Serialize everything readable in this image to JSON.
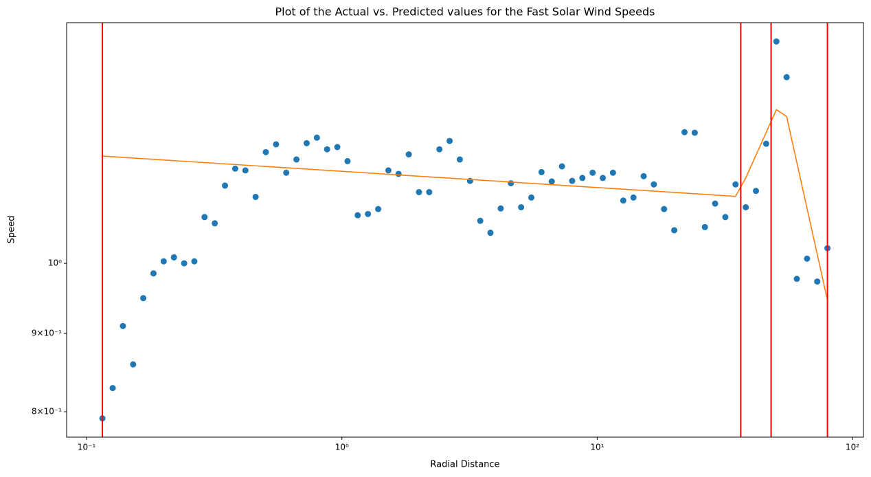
{
  "chart_data": {
    "type": "scatter",
    "title": "Plot of the Actual vs. Predicted values for the Fast Solar Wind Speeds",
    "x_label": "Radial Distance",
    "y_label": "Speed",
    "xscale": "log",
    "yscale": "log",
    "xlim": [
      0.0835,
      110.4
    ],
    "ylim": [
      0.77,
      1.436
    ],
    "xticks": [
      {
        "value": 0.1,
        "label": "10⁻¹"
      },
      {
        "value": 1,
        "label": "10⁰"
      },
      {
        "value": 10,
        "label": "10¹"
      },
      {
        "value": 100,
        "label": "10²"
      }
    ],
    "yticks": [
      {
        "value": 0.8,
        "label": "8×10⁻¹"
      },
      {
        "value": 0.9,
        "label": "9×10⁻¹"
      },
      {
        "value": 1,
        "label": "10⁰"
      }
    ],
    "series": [
      {
        "type": "scatter",
        "color": "#1f77b4",
        "x": [
          0.1153,
          0.1265,
          0.1387,
          0.1521,
          0.1667,
          0.1828,
          0.2004,
          0.2198,
          0.241,
          0.2642,
          0.2897,
          0.3177,
          0.3483,
          0.3819,
          0.4188,
          0.4592,
          0.5035,
          0.5521,
          0.6053,
          0.6637,
          0.7278,
          0.798,
          0.875,
          0.9594,
          1.052,
          1.153,
          1.265,
          1.387,
          1.521,
          1.667,
          1.828,
          2.004,
          2.198,
          2.41,
          2.642,
          2.897,
          3.177,
          3.483,
          3.819,
          4.188,
          4.592,
          5.035,
          5.521,
          6.053,
          6.637,
          7.278,
          7.98,
          8.75,
          9.594,
          10.52,
          11.53,
          12.65,
          13.87,
          15.21,
          16.67,
          18.28,
          20.04,
          21.98,
          24.1,
          26.42,
          28.97,
          31.77,
          34.83,
          38.19,
          41.88,
          45.92,
          50.35,
          55.21,
          60.53,
          66.37,
          72.78,
          79.8
        ],
        "values": [
          0.792,
          0.829,
          0.91,
          0.859,
          0.949,
          0.985,
          1.003,
          1.009,
          1.0,
          1.003,
          1.072,
          1.062,
          1.124,
          1.153,
          1.15,
          1.105,
          1.182,
          1.196,
          1.146,
          1.169,
          1.198,
          1.208,
          1.187,
          1.191,
          1.166,
          1.075,
          1.077,
          1.085,
          1.15,
          1.144,
          1.178,
          1.113,
          1.113,
          1.187,
          1.202,
          1.169,
          1.132,
          1.066,
          1.047,
          1.086,
          1.128,
          1.088,
          1.104,
          1.147,
          1.131,
          1.157,
          1.132,
          1.137,
          1.146,
          1.137,
          1.146,
          1.099,
          1.104,
          1.14,
          1.126,
          1.085,
          1.051,
          1.218,
          1.217,
          1.056,
          1.094,
          1.072,
          1.126,
          1.088,
          1.115,
          1.197,
          1.396,
          1.323,
          0.977,
          1.007,
          0.973,
          1.023
        ]
      },
      {
        "type": "line",
        "color": "#ff7f0e",
        "x": [
          0.1153,
          34.83,
          38.19,
          50.35,
          55.21,
          79.8
        ],
        "values": [
          1.175,
          1.106,
          1.137,
          1.26,
          1.247,
          0.946
        ]
      }
    ],
    "vlines": {
      "color": "#ff0000",
      "values": [
        0.1153,
        36.5,
        48.0,
        79.8
      ]
    }
  }
}
